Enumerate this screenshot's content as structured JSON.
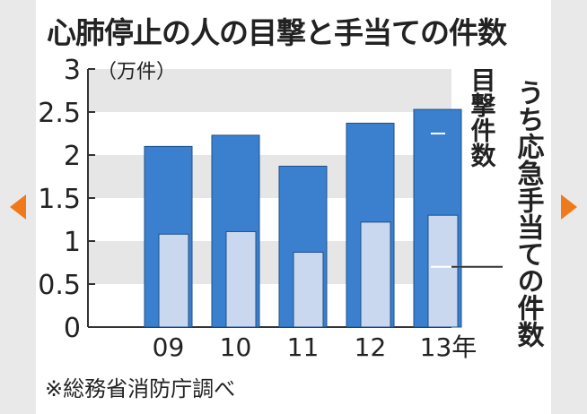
{
  "title": "心肺停止の人の目撃と手当ての件数",
  "source": "※総務省消防庁調べ",
  "nav": {
    "prev_icon": "chevron-left-icon",
    "next_icon": "chevron-right-icon",
    "arrow_color": "#f07a1a"
  },
  "chart_data": {
    "type": "bar",
    "unit_label": "（万件）",
    "categories": [
      "09",
      "10",
      "11",
      "12",
      "13年"
    ],
    "series": [
      {
        "name": "目撃件数",
        "values": [
          2.1,
          2.23,
          1.87,
          2.37,
          2.53
        ],
        "color": "#3a80cf"
      },
      {
        "name": "うち応急手当ての件数",
        "values": [
          1.08,
          1.11,
          0.87,
          1.22,
          1.3
        ],
        "color": "#c9d8ee"
      }
    ],
    "ylim": [
      0,
      3
    ],
    "yticks": [
      "0",
      "0.5",
      "1",
      "1.5",
      "2",
      "2.5",
      "3"
    ],
    "ytick_values": [
      0,
      0.5,
      1,
      1.5,
      2,
      2.5,
      3
    ],
    "grid": "alternating bands"
  }
}
